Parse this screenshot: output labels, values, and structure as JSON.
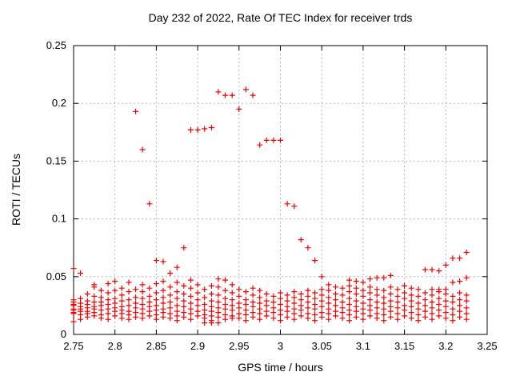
{
  "window": {
    "background": "#ffffff"
  },
  "chart_data": {
    "type": "scatter",
    "title": "Day 232 of 2022, Rate Of TEC Index for receiver trds",
    "xlabel": "GPS time / hours",
    "ylabel": "ROTI / TECUs",
    "xlim": [
      2.75,
      3.25
    ],
    "ylim": [
      0,
      0.25
    ],
    "grid": true,
    "legend": null,
    "x_ticks": {
      "values": [
        2.75,
        2.8,
        2.85,
        2.9,
        2.95,
        3.0,
        3.05,
        3.1,
        3.15,
        3.2,
        3.25
      ],
      "labels": [
        "2.75",
        "2.8",
        "2.85",
        "2.9",
        "2.95",
        "3",
        "3.05",
        "3.1",
        "3.15",
        "3.2",
        "3.25"
      ]
    },
    "y_ticks": {
      "values": [
        0,
        0.05,
        0.1,
        0.15,
        0.2,
        0.25
      ],
      "labels": [
        "0",
        "0.05",
        "0.1",
        "0.15",
        "0.2",
        "0.25"
      ]
    },
    "style": {
      "marker_shape": "plus",
      "marker_color": "#ee0000",
      "marker_size": 7,
      "grid_color": "#b5b5b5",
      "axis_color": "#000000",
      "background": "#ffffff"
    },
    "series": {
      "name": "ROTI",
      "peak_points": [
        [
          2.75,
          0.057
        ],
        [
          2.7583,
          0.053
        ],
        [
          2.825,
          0.193
        ],
        [
          2.8333,
          0.16
        ],
        [
          2.8417,
          0.113
        ],
        [
          2.85,
          0.064
        ],
        [
          2.8583,
          0.063
        ],
        [
          2.8667,
          0.053
        ],
        [
          2.875,
          0.058
        ],
        [
          2.8833,
          0.075
        ],
        [
          2.8917,
          0.177
        ],
        [
          2.9,
          0.177
        ],
        [
          2.9083,
          0.178
        ],
        [
          2.9167,
          0.179
        ],
        [
          2.925,
          0.21
        ],
        [
          2.9333,
          0.207
        ],
        [
          2.9417,
          0.207
        ],
        [
          2.95,
          0.195
        ],
        [
          2.9583,
          0.212
        ],
        [
          2.9667,
          0.207
        ],
        [
          2.975,
          0.164
        ],
        [
          2.9833,
          0.168
        ],
        [
          2.9917,
          0.168
        ],
        [
          3.0,
          0.168
        ],
        [
          3.0083,
          0.113
        ],
        [
          3.0167,
          0.111
        ],
        [
          3.025,
          0.082
        ],
        [
          3.0333,
          0.075
        ],
        [
          3.0417,
          0.064
        ],
        [
          3.05,
          0.05
        ],
        [
          3.0833,
          0.047
        ],
        [
          3.0917,
          0.046
        ],
        [
          3.1,
          0.045
        ],
        [
          3.1083,
          0.048
        ],
        [
          3.1167,
          0.049
        ],
        [
          3.125,
          0.049
        ],
        [
          3.1333,
          0.051
        ],
        [
          3.1667,
          0.039
        ],
        [
          3.175,
          0.056
        ],
        [
          3.1833,
          0.056
        ],
        [
          3.1917,
          0.055
        ],
        [
          3.1917,
          0.039
        ],
        [
          3.2,
          0.06
        ],
        [
          3.2,
          0.039
        ],
        [
          3.2083,
          0.066
        ],
        [
          3.2167,
          0.066
        ],
        [
          3.225,
          0.071
        ]
      ],
      "band_columns": [
        {
          "x": 2.75,
          "ys": [
            0.011,
            0.018,
            0.019,
            0.021,
            0.022,
            0.025,
            0.026,
            0.028,
            0.03
          ]
        },
        {
          "x": 2.7583,
          "ys": [
            0.013,
            0.017,
            0.02,
            0.022,
            0.024,
            0.027,
            0.031
          ]
        },
        {
          "x": 2.7667,
          "ys": [
            0.015,
            0.018,
            0.02,
            0.023,
            0.026,
            0.029,
            0.035
          ]
        },
        {
          "x": 2.775,
          "ys": [
            0.016,
            0.019,
            0.022,
            0.024,
            0.028,
            0.033,
            0.041,
            0.043
          ]
        },
        {
          "x": 2.7833,
          "ys": [
            0.014,
            0.017,
            0.021,
            0.025,
            0.028,
            0.032,
            0.038
          ]
        },
        {
          "x": 2.7917,
          "ys": [
            0.013,
            0.018,
            0.022,
            0.026,
            0.03,
            0.036,
            0.044
          ]
        },
        {
          "x": 2.8,
          "ys": [
            0.016,
            0.02,
            0.023,
            0.027,
            0.031,
            0.038,
            0.046
          ]
        },
        {
          "x": 2.8083,
          "ys": [
            0.014,
            0.018,
            0.021,
            0.024,
            0.029,
            0.034,
            0.04
          ]
        },
        {
          "x": 2.8167,
          "ys": [
            0.013,
            0.017,
            0.02,
            0.025,
            0.03,
            0.037,
            0.045
          ]
        },
        {
          "x": 2.825,
          "ys": [
            0.015,
            0.019,
            0.023,
            0.027,
            0.032,
            0.039
          ]
        },
        {
          "x": 2.8333,
          "ys": [
            0.014,
            0.018,
            0.022,
            0.026,
            0.031,
            0.037,
            0.043
          ]
        },
        {
          "x": 2.8417,
          "ys": [
            0.016,
            0.02,
            0.024,
            0.028,
            0.033,
            0.04
          ]
        },
        {
          "x": 2.85,
          "ys": [
            0.013,
            0.017,
            0.021,
            0.025,
            0.03,
            0.036,
            0.044
          ]
        },
        {
          "x": 2.8583,
          "ys": [
            0.015,
            0.019,
            0.022,
            0.027,
            0.032,
            0.038,
            0.046
          ]
        },
        {
          "x": 2.8667,
          "ys": [
            0.014,
            0.018,
            0.023,
            0.028,
            0.034,
            0.041
          ]
        },
        {
          "x": 2.875,
          "ys": [
            0.012,
            0.016,
            0.02,
            0.025,
            0.031,
            0.037,
            0.045
          ]
        },
        {
          "x": 2.8833,
          "ys": [
            0.015,
            0.019,
            0.024,
            0.029,
            0.035,
            0.042
          ]
        },
        {
          "x": 2.8917,
          "ys": [
            0.013,
            0.018,
            0.022,
            0.027,
            0.033,
            0.04,
            0.047
          ]
        },
        {
          "x": 2.9,
          "ys": [
            0.016,
            0.02,
            0.025,
            0.03,
            0.036,
            0.043
          ]
        },
        {
          "x": 2.9083,
          "ys": [
            0.01,
            0.014,
            0.017,
            0.021,
            0.026,
            0.032,
            0.039
          ]
        },
        {
          "x": 2.9167,
          "ys": [
            0.01,
            0.012,
            0.016,
            0.02,
            0.024,
            0.029,
            0.035,
            0.042
          ]
        },
        {
          "x": 2.925,
          "ys": [
            0.01,
            0.015,
            0.019,
            0.023,
            0.028,
            0.034,
            0.041,
            0.048
          ]
        },
        {
          "x": 2.9333,
          "ys": [
            0.013,
            0.017,
            0.022,
            0.026,
            0.031,
            0.038,
            0.047
          ]
        },
        {
          "x": 2.9417,
          "ys": [
            0.014,
            0.016,
            0.021,
            0.025,
            0.03,
            0.036,
            0.043
          ]
        },
        {
          "x": 2.95,
          "ys": [
            0.014,
            0.018,
            0.023,
            0.027,
            0.033,
            0.039
          ]
        },
        {
          "x": 2.9583,
          "ys": [
            0.012,
            0.017,
            0.021,
            0.026,
            0.03,
            0.037
          ]
        },
        {
          "x": 2.9667,
          "ys": [
            0.015,
            0.019,
            0.024,
            0.028,
            0.034,
            0.04
          ]
        },
        {
          "x": 2.975,
          "ys": [
            0.013,
            0.018,
            0.022,
            0.027,
            0.032,
            0.038
          ]
        },
        {
          "x": 2.9833,
          "ys": [
            0.016,
            0.02,
            0.025,
            0.029,
            0.035
          ]
        },
        {
          "x": 2.9917,
          "ys": [
            0.014,
            0.019,
            0.023,
            0.028,
            0.033
          ]
        },
        {
          "x": 3.0,
          "ys": [
            0.012,
            0.017,
            0.021,
            0.026,
            0.031,
            0.036
          ]
        },
        {
          "x": 3.0083,
          "ys": [
            0.015,
            0.02,
            0.024,
            0.029,
            0.034
          ]
        },
        {
          "x": 3.0167,
          "ys": [
            0.013,
            0.018,
            0.022,
            0.027,
            0.032,
            0.037
          ]
        },
        {
          "x": 3.025,
          "ys": [
            0.016,
            0.021,
            0.025,
            0.03,
            0.035
          ]
        },
        {
          "x": 3.0333,
          "ys": [
            0.014,
            0.018,
            0.023,
            0.028,
            0.033,
            0.038
          ]
        },
        {
          "x": 3.0417,
          "ys": [
            0.012,
            0.017,
            0.022,
            0.026,
            0.031,
            0.036
          ]
        },
        {
          "x": 3.05,
          "ys": [
            0.015,
            0.019,
            0.024,
            0.029,
            0.034,
            0.039
          ]
        },
        {
          "x": 3.0583,
          "ys": [
            0.013,
            0.018,
            0.022,
            0.027,
            0.032,
            0.038,
            0.043
          ]
        },
        {
          "x": 3.0667,
          "ys": [
            0.016,
            0.02,
            0.025,
            0.03,
            0.035,
            0.041
          ]
        },
        {
          "x": 3.075,
          "ys": [
            0.014,
            0.019,
            0.023,
            0.028,
            0.034,
            0.04
          ]
        },
        {
          "x": 3.0833,
          "ys": [
            0.012,
            0.017,
            0.021,
            0.026,
            0.031,
            0.037,
            0.042
          ]
        },
        {
          "x": 3.0917,
          "ys": [
            0.015,
            0.02,
            0.024,
            0.029,
            0.035,
            0.04
          ]
        },
        {
          "x": 3.1,
          "ys": [
            0.013,
            0.018,
            0.022,
            0.027,
            0.033,
            0.038
          ]
        },
        {
          "x": 3.1083,
          "ys": [
            0.016,
            0.021,
            0.025,
            0.03,
            0.036,
            0.041
          ]
        },
        {
          "x": 3.1167,
          "ys": [
            0.014,
            0.018,
            0.023,
            0.028,
            0.034,
            0.039
          ]
        },
        {
          "x": 3.125,
          "ys": [
            0.012,
            0.017,
            0.022,
            0.027,
            0.032,
            0.038
          ]
        },
        {
          "x": 3.1333,
          "ys": [
            0.015,
            0.02,
            0.024,
            0.029,
            0.035,
            0.041
          ]
        },
        {
          "x": 3.1417,
          "ys": [
            0.013,
            0.018,
            0.023,
            0.028,
            0.033,
            0.039
          ]
        },
        {
          "x": 3.15,
          "ys": [
            0.016,
            0.021,
            0.025,
            0.031,
            0.036,
            0.042
          ]
        },
        {
          "x": 3.1583,
          "ys": [
            0.014,
            0.019,
            0.024,
            0.029,
            0.034,
            0.04
          ]
        },
        {
          "x": 3.1667,
          "ys": [
            0.012,
            0.017,
            0.022,
            0.027,
            0.033
          ]
        },
        {
          "x": 3.175,
          "ys": [
            0.015,
            0.02,
            0.025,
            0.03,
            0.036
          ]
        },
        {
          "x": 3.1833,
          "ys": [
            0.013,
            0.018,
            0.023,
            0.028,
            0.034,
            0.039
          ]
        },
        {
          "x": 3.1917,
          "ys": [
            0.016,
            0.021,
            0.026,
            0.031,
            0.037
          ]
        },
        {
          "x": 3.2,
          "ys": [
            0.014,
            0.019,
            0.024,
            0.029,
            0.035
          ]
        },
        {
          "x": 3.2083,
          "ys": [
            0.012,
            0.017,
            0.022,
            0.028,
            0.033,
            0.045
          ]
        },
        {
          "x": 3.2167,
          "ys": [
            0.015,
            0.02,
            0.025,
            0.03,
            0.036,
            0.046
          ]
        },
        {
          "x": 3.225,
          "ys": [
            0.013,
            0.018,
            0.023,
            0.029,
            0.034,
            0.049
          ]
        }
      ]
    }
  }
}
